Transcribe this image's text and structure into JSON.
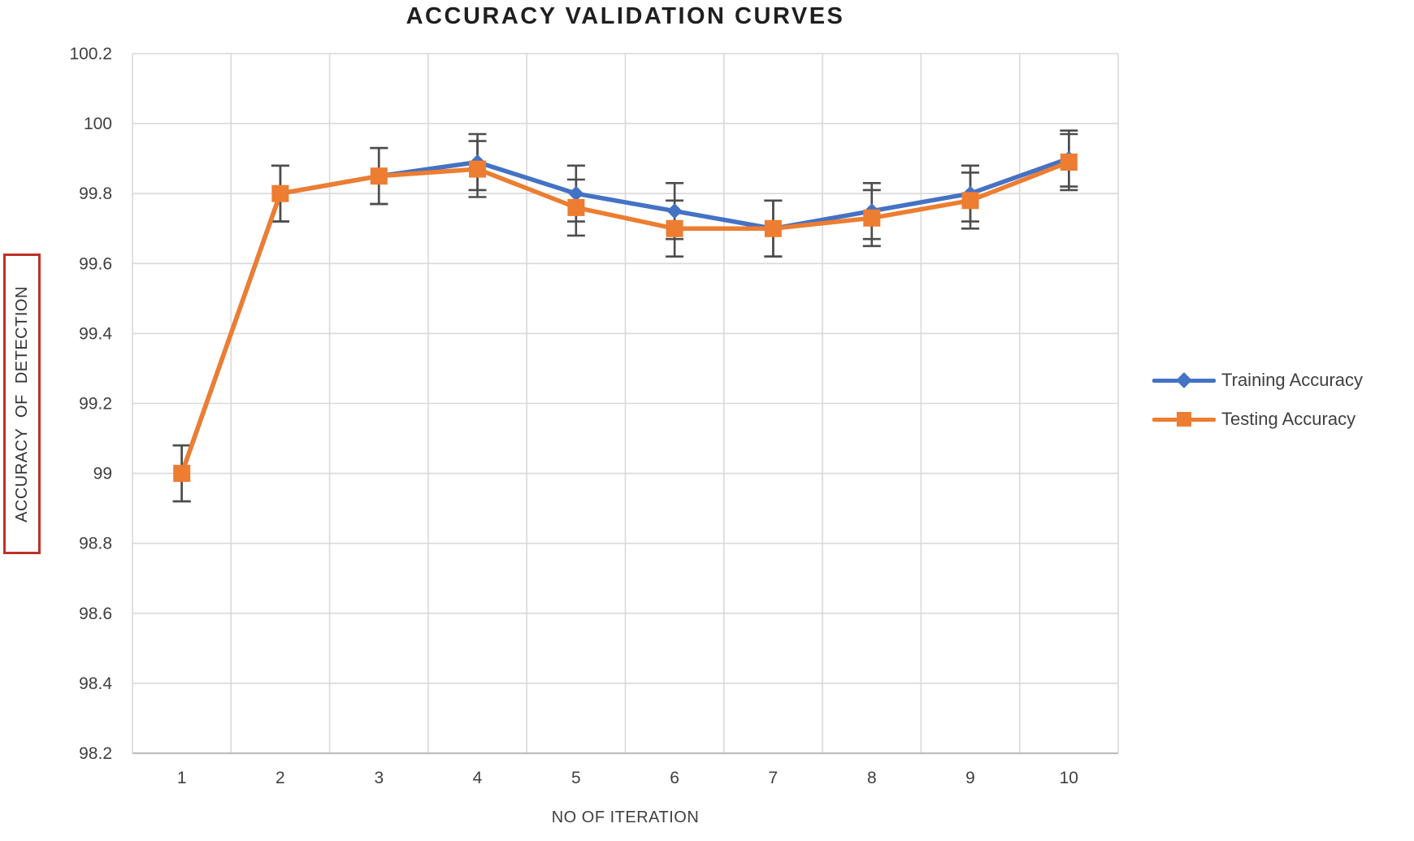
{
  "title": "ACCURACY VALIDATION CURVES",
  "colors": {
    "training": "#4472C4",
    "testing": "#ED7D31",
    "error_bar": "#4d4d4d",
    "gridline": "#d9d9d9",
    "axis_line": "#bfbfbf",
    "y_title_box_border": "#be3126",
    "tick_text": "#404040",
    "title_text": "#1f1f1f"
  },
  "legend": {
    "position": "right",
    "items": [
      {
        "label": "Training Accuracy",
        "marker": "diamond-marker-icon"
      },
      {
        "label": "Testing Accuracy",
        "marker": "square-marker-icon"
      }
    ]
  },
  "chart_data": {
    "type": "line",
    "title": "ACCURACY VALIDATION CURVES",
    "xlabel": "NO OF ITERATION",
    "ylabel": "ACCURACY OF DETECTION",
    "categories": [
      "1",
      "2",
      "3",
      "4",
      "5",
      "6",
      "7",
      "8",
      "9",
      "10"
    ],
    "series": [
      {
        "name": "Training Accuracy",
        "color": "#4472C4",
        "marker": "diamond",
        "values": [
          99.0,
          99.8,
          99.85,
          99.89,
          99.8,
          99.75,
          99.7,
          99.75,
          99.8,
          99.9
        ],
        "error_bar": 0.08
      },
      {
        "name": "Testing Accuracy",
        "color": "#ED7D31",
        "marker": "square",
        "values": [
          99.0,
          99.8,
          99.85,
          99.87,
          99.76,
          99.7,
          99.7,
          99.73,
          99.78,
          99.89
        ],
        "error_bar": 0.08
      }
    ],
    "ylim": [
      98.2,
      100.2
    ],
    "y_ticks": [
      "98.2",
      "98.4",
      "98.6",
      "98.8",
      "99",
      "99.2",
      "99.4",
      "99.6",
      "99.8",
      "100",
      "100.2"
    ],
    "grid": true,
    "legend_position": "right"
  }
}
